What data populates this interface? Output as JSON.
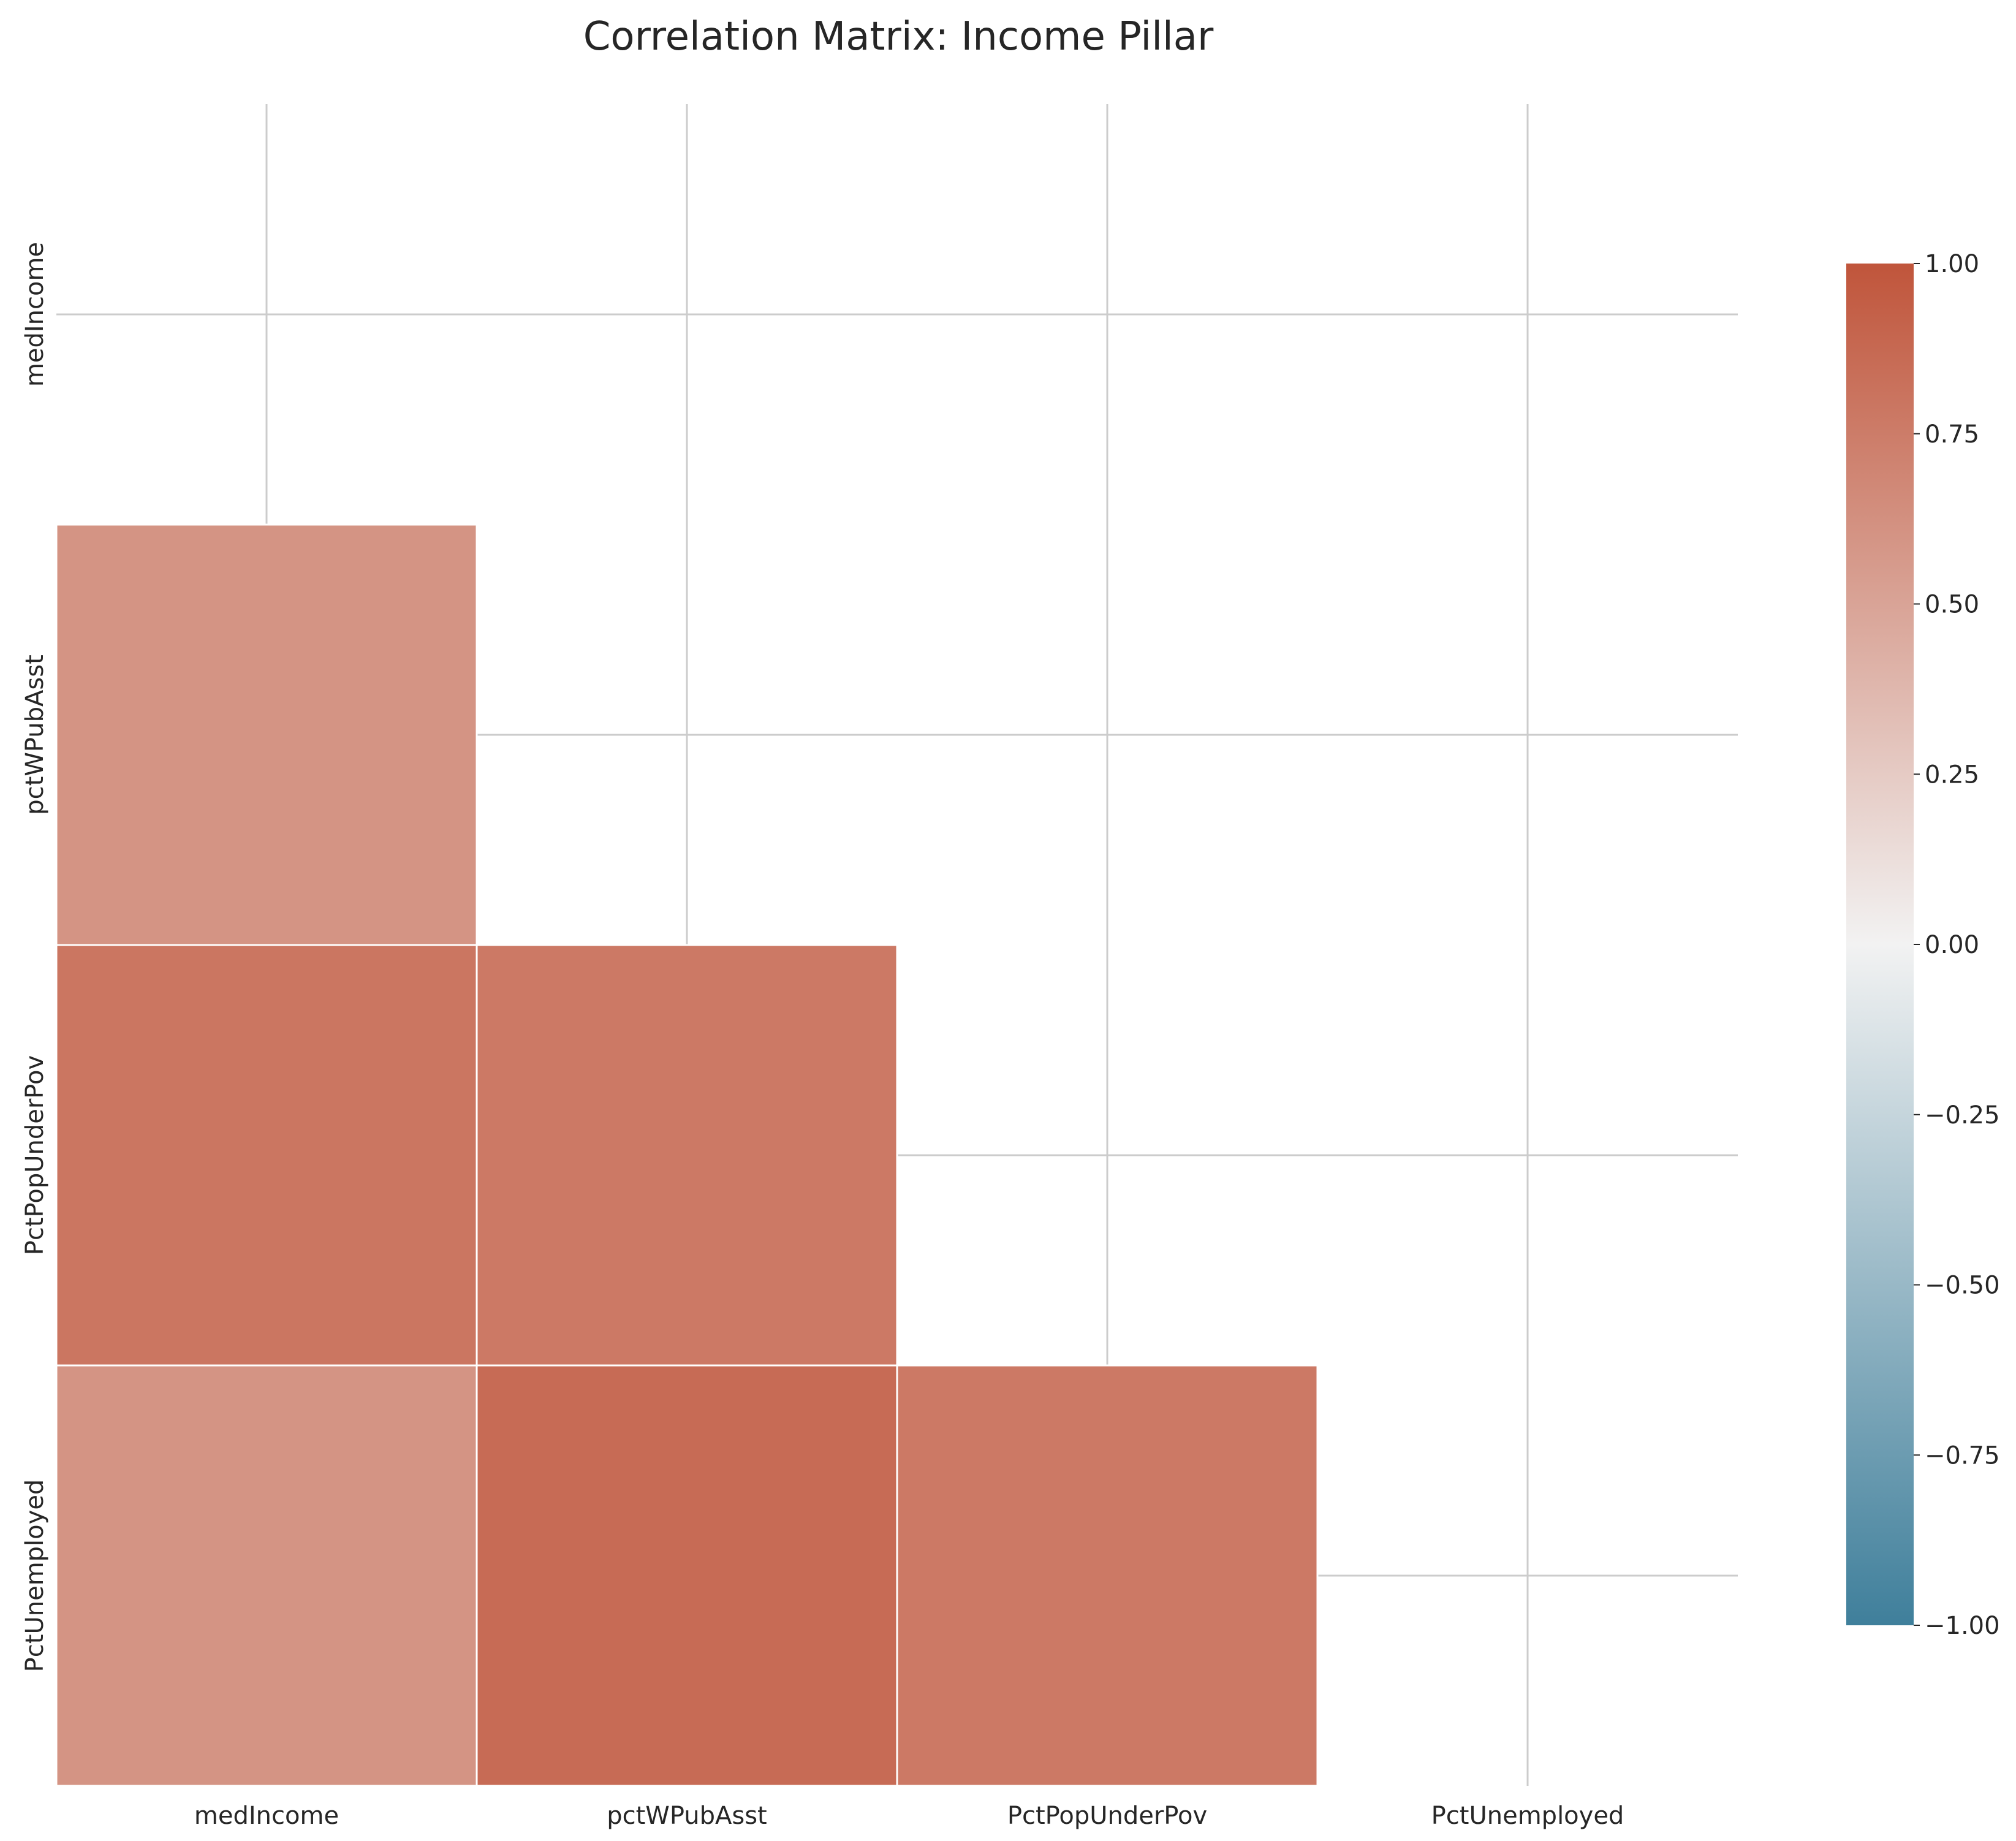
{
  "chart_data": {
    "type": "heatmap",
    "title": "Correlation Matrix: Income Pillar",
    "xlabel": "",
    "ylabel": "",
    "x_labels": [
      "medIncome",
      "pctWPubAsst",
      "PctPopUnderPov",
      "PctUnemployed"
    ],
    "y_labels": [
      "medIncome",
      "pctWPubAsst",
      "PctPopUnderPov",
      "PctUnemployed"
    ],
    "mask": "upper-triangle-including-diagonal",
    "cells": [
      {
        "row": "pctWPubAsst",
        "col": "medIncome",
        "value": 0.6
      },
      {
        "row": "PctPopUnderPov",
        "col": "medIncome",
        "value": 0.79
      },
      {
        "row": "PctPopUnderPov",
        "col": "pctWPubAsst",
        "value": 0.77
      },
      {
        "row": "PctUnemployed",
        "col": "medIncome",
        "value": 0.6
      },
      {
        "row": "PctUnemployed",
        "col": "pctWPubAsst",
        "value": 0.86
      },
      {
        "row": "PctUnemployed",
        "col": "PctPopUnderPov",
        "value": 0.77
      }
    ],
    "colorbar": {
      "min": -1.0,
      "max": 1.0,
      "ticks": [
        "1.00",
        "0.75",
        "0.50",
        "0.25",
        "0.00",
        "−0.25",
        "−0.50",
        "−0.75",
        "−1.00"
      ],
      "colors": {
        "low": "#3f7f9b",
        "mid": "#f2f2f2",
        "high": "#c0553b"
      }
    },
    "grid": true
  }
}
